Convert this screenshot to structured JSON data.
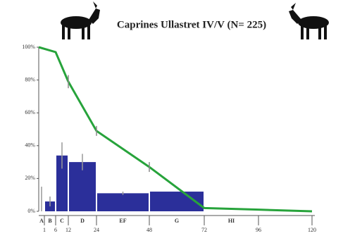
{
  "chart_data": {
    "type": "histogram_line",
    "title": "Caprines Ullastret IV/V (N= 225)",
    "bins": [
      0,
      1,
      6,
      12,
      24,
      48,
      72,
      96,
      120
    ],
    "class_labels": [
      "A",
      "B",
      "C",
      "D",
      "EF",
      "G",
      "HI",
      null
    ],
    "values": [
      0,
      6,
      34,
      30,
      11,
      12,
      0,
      0
    ],
    "errors": [
      15,
      3,
      8,
      5,
      1,
      null,
      null,
      null
    ],
    "color": "#2b2f9a",
    "line": {
      "x": [
        0,
        6,
        12,
        24,
        48,
        72,
        96,
        120
      ],
      "values": [
        100,
        97,
        79,
        49,
        27,
        2,
        1,
        0
      ],
      "errors": [
        null,
        null,
        4,
        3,
        3,
        null,
        null,
        null
      ],
      "color": "#27a33b"
    },
    "xticks": [
      1,
      6,
      12,
      24,
      48,
      72,
      96,
      120
    ],
    "ylim": [
      0,
      100
    ],
    "yticks": [
      {
        "value": 0,
        "label": "0%"
      },
      {
        "value": 20,
        "label": "20%"
      },
      {
        "value": 40,
        "label": "40%"
      },
      {
        "value": 60,
        "label": "60%"
      },
      {
        "value": 80,
        "label": "80%"
      },
      {
        "value": 100,
        "label": "100%"
      }
    ]
  }
}
